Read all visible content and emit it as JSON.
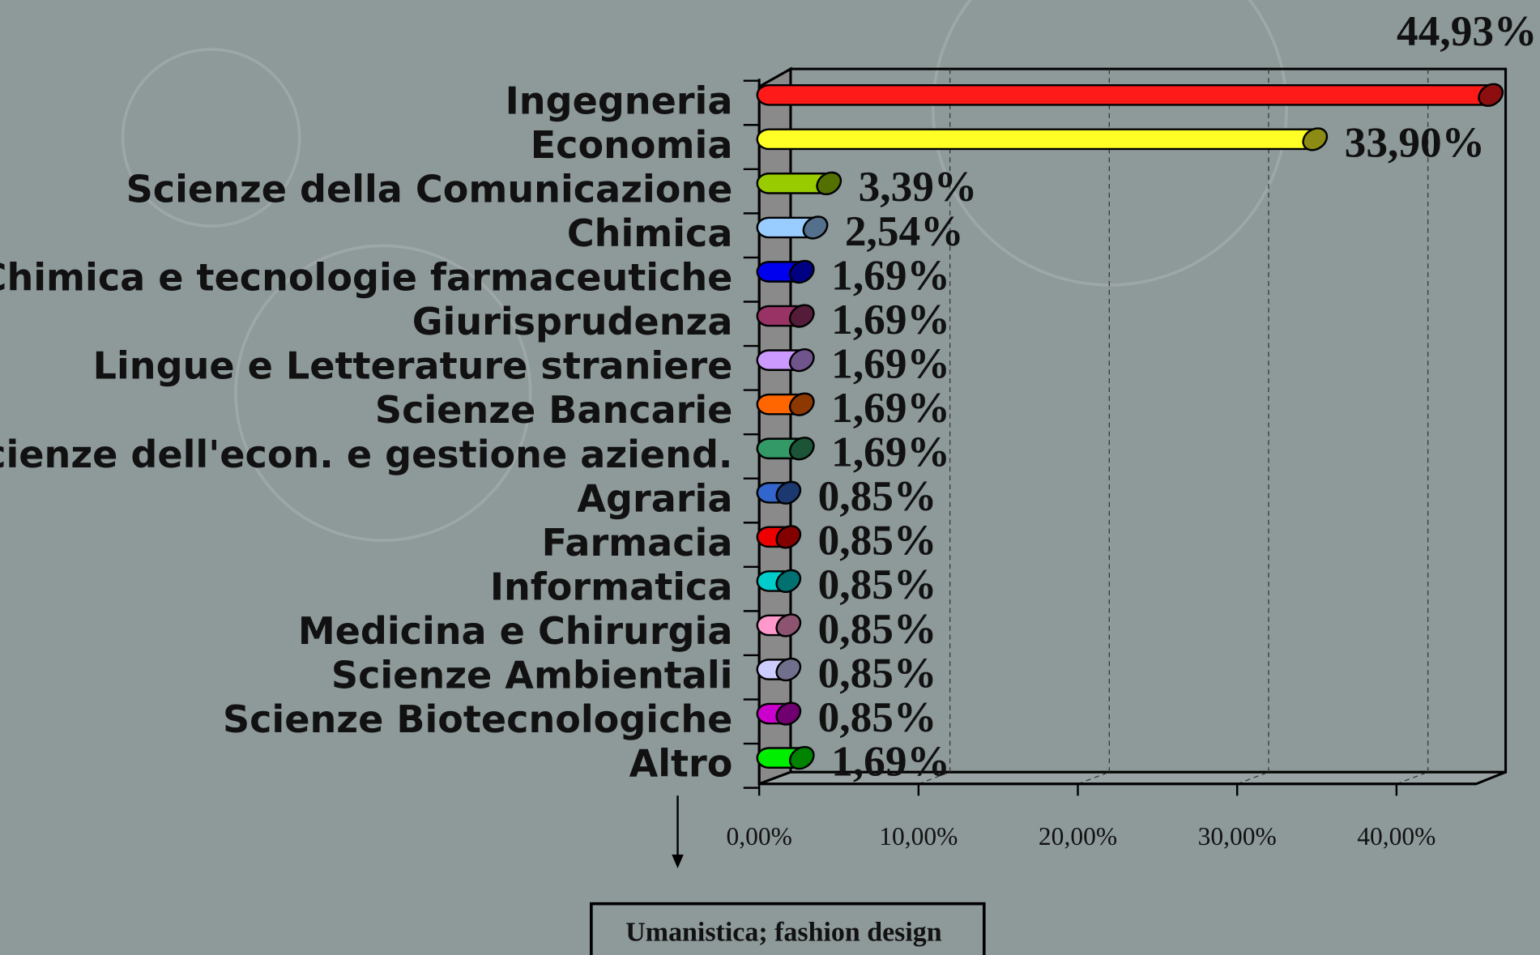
{
  "chart_data": {
    "type": "bar3d_horizontal",
    "categories": [
      "Ingegneria",
      "Economia",
      "Scienze della Comunicazione",
      "Chimica",
      "Chimica e tecnologie farmaceutiche",
      "Giurisprudenza",
      "Lingue e Letterature straniere",
      "Scienze Bancarie",
      "Scienze dell'econ. e gestione aziend.",
      "Agraria",
      "Farmacia",
      "Informatica",
      "Medicina e Chirurgia",
      "Scienze Ambientali",
      "Scienze Biotecnologiche",
      "Altro"
    ],
    "values": [
      44.93,
      33.9,
      3.39,
      2.54,
      1.69,
      1.69,
      1.69,
      1.69,
      1.69,
      0.85,
      0.85,
      0.85,
      0.85,
      0.85,
      0.85,
      1.69
    ],
    "value_labels": [
      "44,93%",
      "33,90%",
      "3,39%",
      "2,54%",
      "1,69%",
      "1,69%",
      "1,69%",
      "1,69%",
      "1,69%",
      "0,85%",
      "0,85%",
      "0,85%",
      "0,85%",
      "0,85%",
      "0,85%",
      "1,69%"
    ],
    "colors": [
      "#ff1a1a",
      "#ffff26",
      "#99cc00",
      "#99ccff",
      "#0000ee",
      "#993366",
      "#cc99ff",
      "#ff6600",
      "#339966",
      "#3366cc",
      "#ee0000",
      "#00cccc",
      "#ff99cc",
      "#ccccff",
      "#cc00cc",
      "#00ee00"
    ],
    "xlim": [
      0,
      45
    ],
    "xticks": [
      {
        "value": 0,
        "label": "0,00%"
      },
      {
        "value": 10,
        "label": "10,00%"
      },
      {
        "value": 20,
        "label": "20,00%"
      },
      {
        "value": 30,
        "label": "30,00%"
      },
      {
        "value": 40,
        "label": "40,00%"
      }
    ],
    "grid": true,
    "annotation": "Umanistica; fashion design"
  }
}
